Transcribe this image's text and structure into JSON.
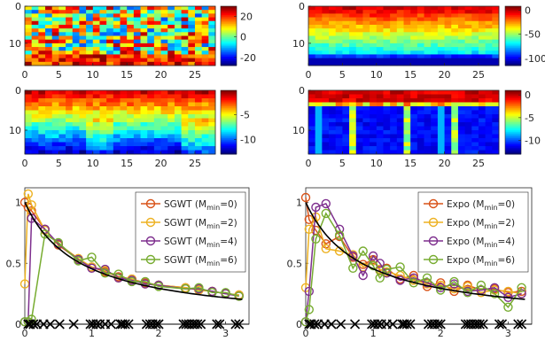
{
  "chart_data": [
    {
      "type": "heatmap",
      "panel": "top-left",
      "colormap": "jet",
      "xticks": [
        0,
        5,
        10,
        15,
        20,
        25
      ],
      "yticks": [
        0,
        10
      ],
      "x_range": [
        0,
        28
      ],
      "y_range": [
        0,
        16
      ],
      "colorbar_ticks": [
        20,
        0,
        -20
      ],
      "colorbar_range": [
        -28,
        30
      ],
      "pattern": "noise"
    },
    {
      "type": "heatmap",
      "panel": "top-right",
      "colormap": "jet",
      "xticks": [
        0,
        5,
        10,
        15,
        20,
        25
      ],
      "yticks": [
        0,
        10
      ],
      "x_range": [
        0,
        28
      ],
      "y_range": [
        0,
        16
      ],
      "colorbar_ticks": [
        0,
        -50,
        -100
      ],
      "colorbar_range": [
        -115,
        8
      ],
      "pattern": "row-gradient"
    },
    {
      "type": "heatmap",
      "panel": "middle-left",
      "colormap": "jet",
      "xticks": [
        0,
        5,
        10,
        15,
        20,
        25
      ],
      "yticks": [
        0,
        10
      ],
      "x_range": [
        0,
        28
      ],
      "y_range": [
        0,
        16
      ],
      "colorbar_ticks": [
        -5,
        -10
      ],
      "colorbar_range": [
        -13,
        0
      ],
      "pattern": "row-gradient-smooth"
    },
    {
      "type": "heatmap",
      "panel": "middle-right",
      "colormap": "jet",
      "xticks": [
        0,
        5,
        10,
        15,
        20,
        25
      ],
      "yticks": [
        0,
        10
      ],
      "x_range": [
        0,
        28
      ],
      "y_range": [
        0,
        16
      ],
      "colorbar_ticks": [
        0,
        -5,
        -10
      ],
      "colorbar_range": [
        -13,
        1
      ],
      "pattern": "top-band"
    },
    {
      "type": "line",
      "panel": "bottom-left",
      "xticks": [
        0,
        1,
        2,
        3
      ],
      "yticks": [
        0,
        0.5,
        1
      ],
      "xlim": [
        0,
        3.35
      ],
      "ylim": [
        0,
        1.12
      ],
      "legend_position": "top-right",
      "legend": [
        "SGWT (M_min=0)",
        "SGWT (M_min=2)",
        "SGWT (M_min=4)",
        "SGWT (M_min=6)"
      ],
      "reference_curve": {
        "color": "#000000",
        "formula": "1/(1+1.2x)",
        "x_max": 3.25
      },
      "crosses_y": 0,
      "crosses_x": [
        0.05,
        0.08,
        0.13,
        0.18,
        0.28,
        0.38,
        0.52,
        0.73,
        0.98,
        1.02,
        1.07,
        1.12,
        1.2,
        1.29,
        1.43,
        1.46,
        1.5,
        1.55,
        1.82,
        1.87,
        1.91,
        1.96,
        2.0,
        2.37,
        2.41,
        2.45,
        2.5,
        2.54,
        2.58,
        2.63,
        2.87,
        2.91,
        3.15,
        3.2
      ],
      "series": [
        {
          "name": "SGWT (M_min=0)",
          "color": "#D95319",
          "x": [
            0,
            0.05,
            0.1,
            0.3,
            0.5,
            0.8,
            1.0,
            1.2,
            1.4,
            1.6,
            1.8,
            2.0,
            2.4,
            2.6,
            2.8,
            3.0,
            3.2
          ],
          "y": [
            1.0,
            0.96,
            0.93,
            0.78,
            0.65,
            0.53,
            0.47,
            0.43,
            0.39,
            0.37,
            0.34,
            0.32,
            0.3,
            0.28,
            0.27,
            0.25,
            0.24
          ]
        },
        {
          "name": "SGWT (M_min=2)",
          "color": "#EDB120",
          "x": [
            0,
            0.05,
            0.1,
            0.3,
            0.5,
            0.8,
            1.0,
            1.2,
            1.4,
            1.6,
            1.8,
            2.0,
            2.4,
            2.6,
            2.8,
            3.0,
            3.2
          ],
          "y": [
            0.33,
            1.07,
            0.98,
            0.77,
            0.66,
            0.54,
            0.47,
            0.44,
            0.38,
            0.37,
            0.33,
            0.32,
            0.3,
            0.28,
            0.27,
            0.25,
            0.24
          ]
        },
        {
          "name": "SGWT (M_min=4)",
          "color": "#7E2F8E",
          "x": [
            0,
            0.05,
            0.1,
            0.3,
            0.5,
            0.8,
            1.0,
            1.2,
            1.4,
            1.6,
            1.8,
            2.0,
            2.4,
            2.6,
            2.8,
            3.0,
            3.2
          ],
          "y": [
            0.02,
            0.02,
            0.87,
            0.78,
            0.66,
            0.53,
            0.46,
            0.45,
            0.38,
            0.36,
            0.33,
            0.32,
            0.29,
            0.29,
            0.27,
            0.25,
            0.23
          ]
        },
        {
          "name": "SGWT (M_min=6)",
          "color": "#77AC30",
          "x": [
            0,
            0.05,
            0.1,
            0.3,
            0.5,
            0.8,
            1.0,
            1.2,
            1.4,
            1.6,
            1.8,
            2.0,
            2.4,
            2.6,
            2.8,
            3.0,
            3.2
          ],
          "y": [
            0.02,
            0.02,
            0.04,
            0.74,
            0.67,
            0.52,
            0.55,
            0.42,
            0.41,
            0.35,
            0.35,
            0.31,
            0.29,
            0.3,
            0.26,
            0.26,
            0.23
          ]
        }
      ]
    },
    {
      "type": "line",
      "panel": "bottom-right",
      "xticks": [
        0,
        1,
        2,
        3
      ],
      "yticks": [
        0,
        0.5,
        1
      ],
      "xlim": [
        0,
        3.35
      ],
      "ylim": [
        0,
        1.12
      ],
      "legend_position": "top-right",
      "legend": [
        "Expo (M_min=0)",
        "Expo (M_min=2)",
        "Expo (M_min=4)",
        "Expo (M_min=6)"
      ],
      "reference_curve": {
        "color": "#000000",
        "formula": "1/(1+1.2x)",
        "x_max": 3.25
      },
      "crosses_y": 0,
      "crosses_x": [
        0.05,
        0.08,
        0.13,
        0.18,
        0.28,
        0.38,
        0.52,
        0.73,
        0.98,
        1.02,
        1.07,
        1.12,
        1.2,
        1.29,
        1.43,
        1.46,
        1.5,
        1.55,
        1.82,
        1.87,
        1.91,
        1.96,
        2.0,
        2.37,
        2.41,
        2.45,
        2.5,
        2.54,
        2.58,
        2.63,
        2.87,
        2.91,
        3.15,
        3.2
      ],
      "series": [
        {
          "name": "Expo (M_min=0)",
          "color": "#D95319",
          "x": [
            0,
            0.05,
            0.15,
            0.3,
            0.5,
            0.7,
            0.85,
            1.0,
            1.1,
            1.2,
            1.4,
            1.6,
            1.8,
            2.0,
            2.2,
            2.4,
            2.6,
            2.8,
            3.0,
            3.2
          ],
          "y": [
            1.04,
            0.86,
            0.77,
            0.66,
            0.72,
            0.55,
            0.49,
            0.53,
            0.44,
            0.46,
            0.37,
            0.4,
            0.31,
            0.34,
            0.27,
            0.32,
            0.28,
            0.29,
            0.26,
            0.27
          ]
        },
        {
          "name": "Expo (M_min=2)",
          "color": "#EDB120",
          "x": [
            0,
            0.05,
            0.15,
            0.3,
            0.5,
            0.7,
            0.85,
            1.0,
            1.1,
            1.2,
            1.4,
            1.6,
            1.8,
            2.0,
            2.2,
            2.4,
            2.6,
            2.8,
            3.0,
            3.2
          ],
          "y": [
            0.3,
            0.78,
            0.88,
            0.62,
            0.6,
            0.57,
            0.47,
            0.52,
            0.45,
            0.43,
            0.4,
            0.36,
            0.33,
            0.32,
            0.29,
            0.31,
            0.26,
            0.28,
            0.27,
            0.25
          ]
        },
        {
          "name": "Expo (M_min=4)",
          "color": "#7E2F8E",
          "x": [
            0,
            0.05,
            0.15,
            0.3,
            0.5,
            0.7,
            0.85,
            1.0,
            1.1,
            1.2,
            1.4,
            1.6,
            1.8,
            2.0,
            2.2,
            2.4,
            2.6,
            2.8,
            3.0,
            3.2
          ],
          "y": [
            0.02,
            0.27,
            0.96,
            0.99,
            0.78,
            0.56,
            0.4,
            0.56,
            0.5,
            0.42,
            0.36,
            0.38,
            0.34,
            0.3,
            0.33,
            0.27,
            0.28,
            0.3,
            0.22,
            0.25
          ]
        },
        {
          "name": "Expo (M_min=6)",
          "color": "#77AC30",
          "x": [
            0,
            0.05,
            0.15,
            0.3,
            0.5,
            0.7,
            0.85,
            1.0,
            1.1,
            1.2,
            1.4,
            1.6,
            1.8,
            2.0,
            2.2,
            2.4,
            2.6,
            2.8,
            3.0,
            3.2
          ],
          "y": [
            0.02,
            0.12,
            0.7,
            0.91,
            0.73,
            0.46,
            0.6,
            0.48,
            0.38,
            0.45,
            0.47,
            0.34,
            0.38,
            0.28,
            0.35,
            0.26,
            0.32,
            0.25,
            0.14,
            0.3
          ]
        }
      ]
    }
  ]
}
